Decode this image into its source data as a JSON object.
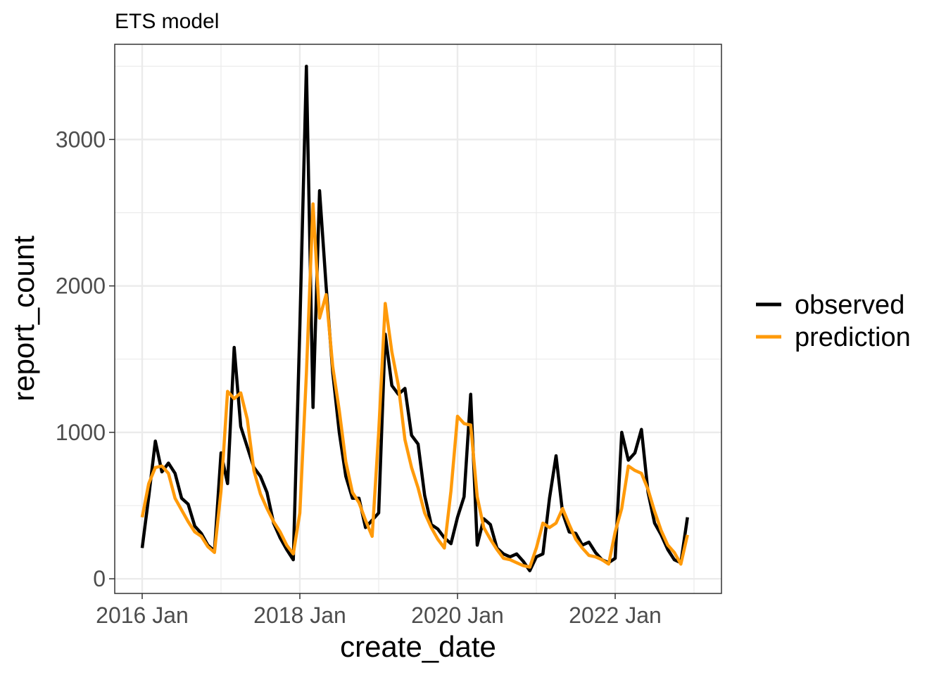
{
  "chart_data": {
    "type": "line",
    "title": "ETS model",
    "xlabel": "create_date",
    "ylabel": "report_count",
    "x_start": "2016-01",
    "x_frequency": "monthly",
    "x_ticks": [
      "2016 Jan",
      "2018 Jan",
      "2020 Jan",
      "2022 Jan"
    ],
    "y_ticks": [
      0,
      1000,
      2000,
      3000
    ],
    "ylim": [
      -100,
      3650
    ],
    "grid": true,
    "legend_position": "right",
    "series": [
      {
        "name": "observed",
        "color": "#000000",
        "values": [
          210,
          560,
          940,
          730,
          790,
          720,
          550,
          510,
          360,
          310,
          230,
          190,
          860,
          650,
          1580,
          1040,
          900,
          760,
          700,
          590,
          380,
          280,
          200,
          130,
          1720,
          3500,
          1170,
          2650,
          2000,
          1410,
          1000,
          700,
          550,
          550,
          350,
          400,
          450,
          1670,
          1320,
          1260,
          1300,
          980,
          920,
          570,
          370,
          340,
          280,
          240,
          420,
          560,
          1260,
          230,
          410,
          370,
          210,
          170,
          150,
          170,
          120,
          55,
          150,
          170,
          550,
          840,
          450,
          320,
          310,
          230,
          250,
          180,
          130,
          110,
          140,
          1000,
          810,
          860,
          1020,
          590,
          380,
          300,
          200,
          130,
          110,
          420
        ]
      },
      {
        "name": "prediction",
        "color": "#ff9a0a",
        "values": [
          420,
          650,
          760,
          770,
          720,
          550,
          470,
          390,
          320,
          290,
          220,
          180,
          600,
          1280,
          1230,
          1270,
          1090,
          740,
          580,
          480,
          390,
          320,
          230,
          170,
          450,
          1400,
          2560,
          1780,
          1940,
          1450,
          1150,
          800,
          590,
          520,
          400,
          290,
          1000,
          1880,
          1550,
          1320,
          950,
          760,
          620,
          450,
          350,
          270,
          210,
          600,
          1110,
          1060,
          1050,
          560,
          350,
          270,
          200,
          140,
          130,
          110,
          90,
          80,
          210,
          380,
          350,
          380,
          480,
          370,
          270,
          210,
          160,
          150,
          130,
          100,
          320,
          480,
          770,
          740,
          720,
          610,
          460,
          330,
          230,
          180,
          100,
          300
        ]
      }
    ]
  }
}
